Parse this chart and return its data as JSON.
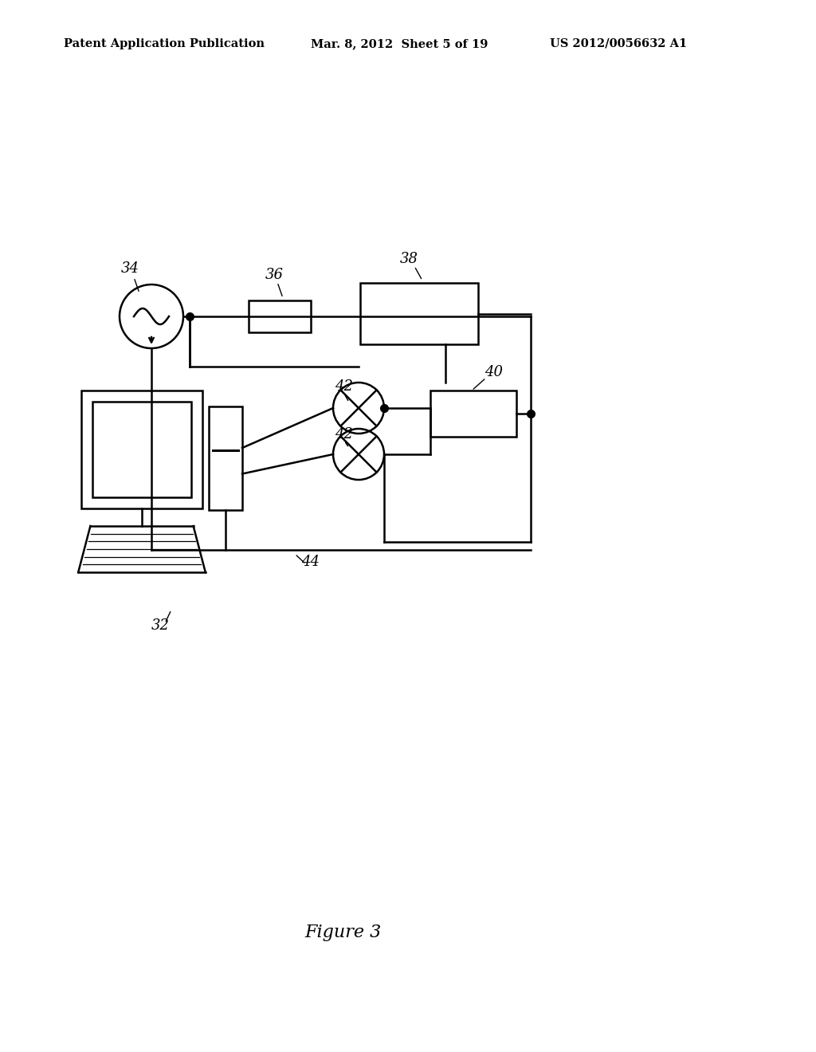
{
  "bg_color": "#ffffff",
  "line_color": "#000000",
  "header_left": "Patent Application Publication",
  "header_mid": "Mar. 8, 2012  Sheet 5 of 19",
  "header_right": "US 2012/0056632 A1",
  "figure_label": "Figure 3",
  "lw": 1.8,
  "dot_size": 7,
  "label_fs": 13,
  "fig_label_fs": 16
}
